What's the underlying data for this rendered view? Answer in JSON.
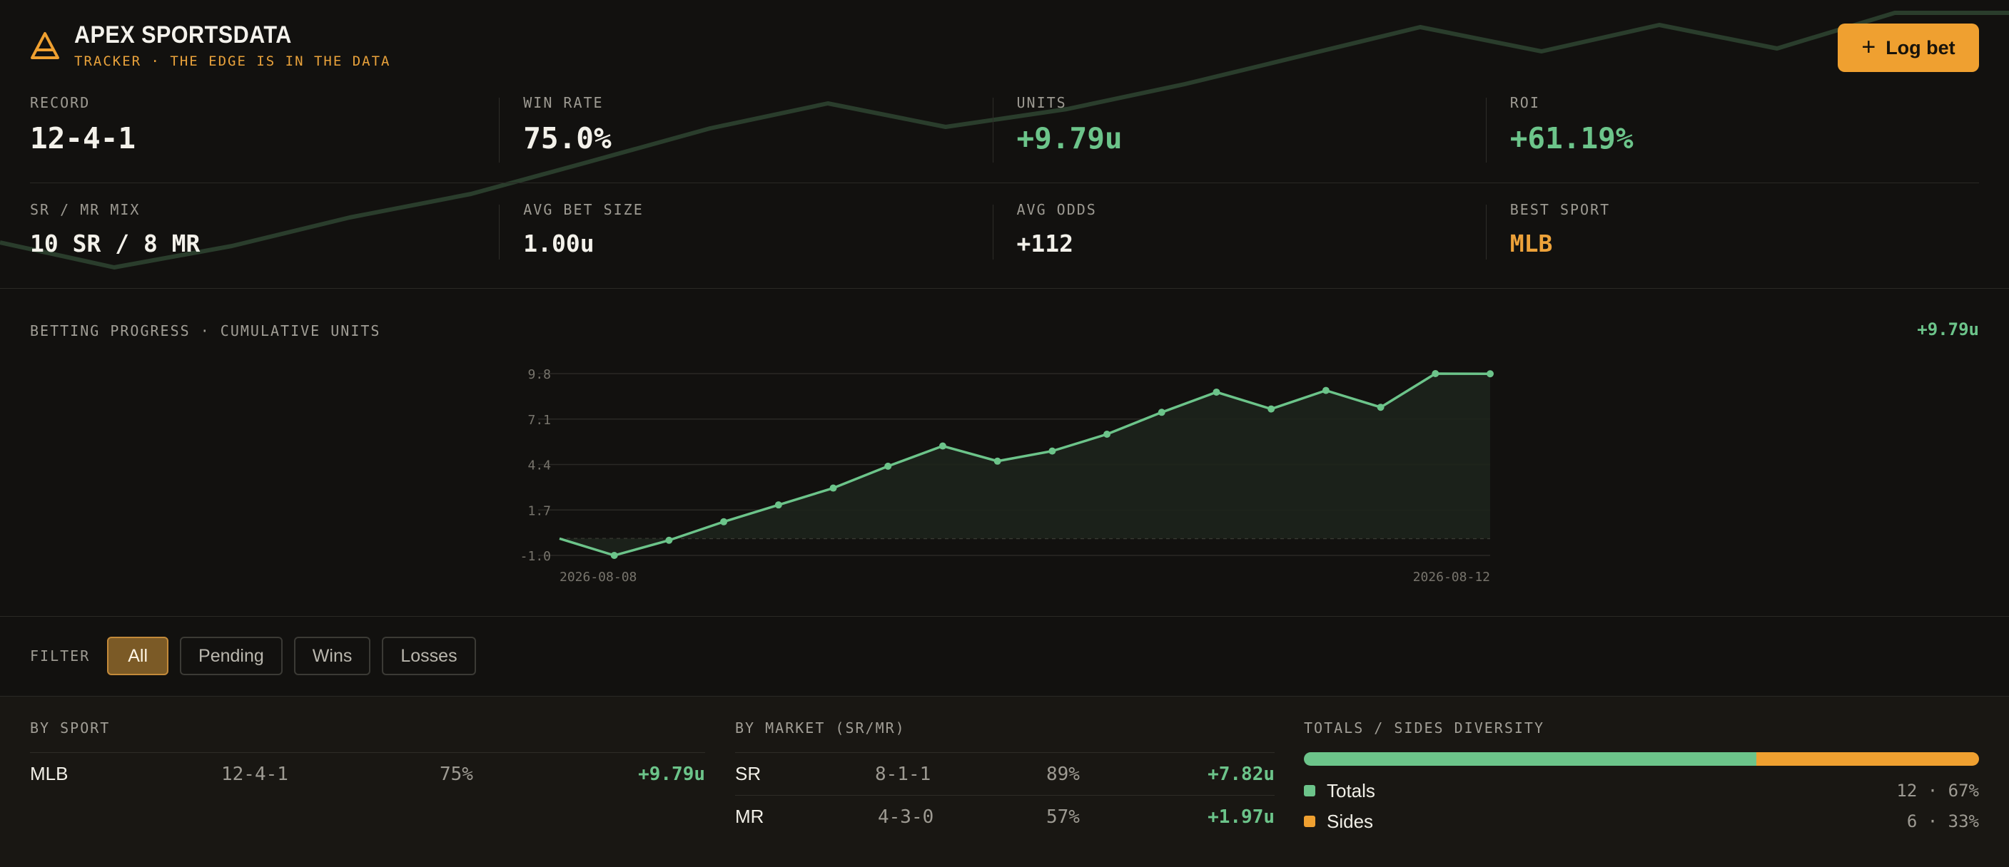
{
  "brand": {
    "title": "APEX SPORTSDATA",
    "subtitle": "TRACKER · THE EDGE IS IN THE DATA"
  },
  "actions": {
    "log_bet_label": "Log bet",
    "log_bet_icon": "plus-icon"
  },
  "stats": {
    "record": {
      "label": "RECORD",
      "value": "12-4-1"
    },
    "win_rate": {
      "label": "WIN RATE",
      "value": "75.0%"
    },
    "units": {
      "label": "UNITS",
      "value": "+9.79u"
    },
    "roi": {
      "label": "ROI",
      "value": "+61.19%"
    },
    "mix": {
      "label": "SR / MR MIX",
      "value": "10 SR / 8 MR"
    },
    "avg_bet": {
      "label": "AVG BET SIZE",
      "value": "1.00u"
    },
    "avg_odds": {
      "label": "AVG ODDS",
      "value": "+112"
    },
    "best_sport": {
      "label": "BEST SPORT",
      "value": "MLB"
    }
  },
  "progress": {
    "title": "BETTING PROGRESS · CUMULATIVE UNITS",
    "total": "+9.79u"
  },
  "chart_data": {
    "type": "area",
    "x": [
      "2026-08-08",
      "",
      "",
      "",
      "",
      "",
      "",
      "",
      "",
      "",
      "",
      "",
      "",
      "",
      "",
      "",
      "",
      "2026-08-12"
    ],
    "xtick_labels": [
      "2026-08-08",
      "2026-08-12"
    ],
    "values": [
      0,
      -1.0,
      -0.1,
      1.0,
      2.0,
      3.0,
      4.3,
      5.5,
      4.6,
      5.2,
      6.2,
      7.5,
      8.7,
      7.7,
      8.8,
      7.8,
      9.8,
      9.79
    ],
    "yticks": [
      9.8,
      7.1,
      4.4,
      1.7,
      -1.0
    ],
    "ylim": [
      -1.0,
      9.8
    ],
    "zero_line": true,
    "grid": true,
    "colors": {
      "line": "#6cc48a",
      "grid": "#2a2925",
      "fill": "#1d231c"
    }
  },
  "filter": {
    "label": "FILTER",
    "options": [
      "All",
      "Pending",
      "Wins",
      "Losses"
    ],
    "active": "All"
  },
  "by_sport": {
    "title": "BY SPORT",
    "rows": [
      {
        "name": "MLB",
        "record": "12-4-1",
        "pct": "75%",
        "units": "+9.79u"
      }
    ]
  },
  "by_market": {
    "title": "BY MARKET (SR/MR)",
    "rows": [
      {
        "name": "SR",
        "record": "8-1-1",
        "pct": "89%",
        "units": "+7.82u"
      },
      {
        "name": "MR",
        "record": "4-3-0",
        "pct": "57%",
        "units": "+1.97u"
      }
    ]
  },
  "diversity": {
    "title": "TOTALS / SIDES DIVERSITY",
    "items": [
      {
        "name": "Totals",
        "value": "12 · 67%",
        "share": 0.67,
        "color": "#6cc48a"
      },
      {
        "name": "Sides",
        "value": "6 · 33%",
        "share": 0.33,
        "color": "#efa030"
      }
    ]
  },
  "colors": {
    "accent": "#efa030",
    "positive": "#6cc48a",
    "background": "#12110f"
  }
}
